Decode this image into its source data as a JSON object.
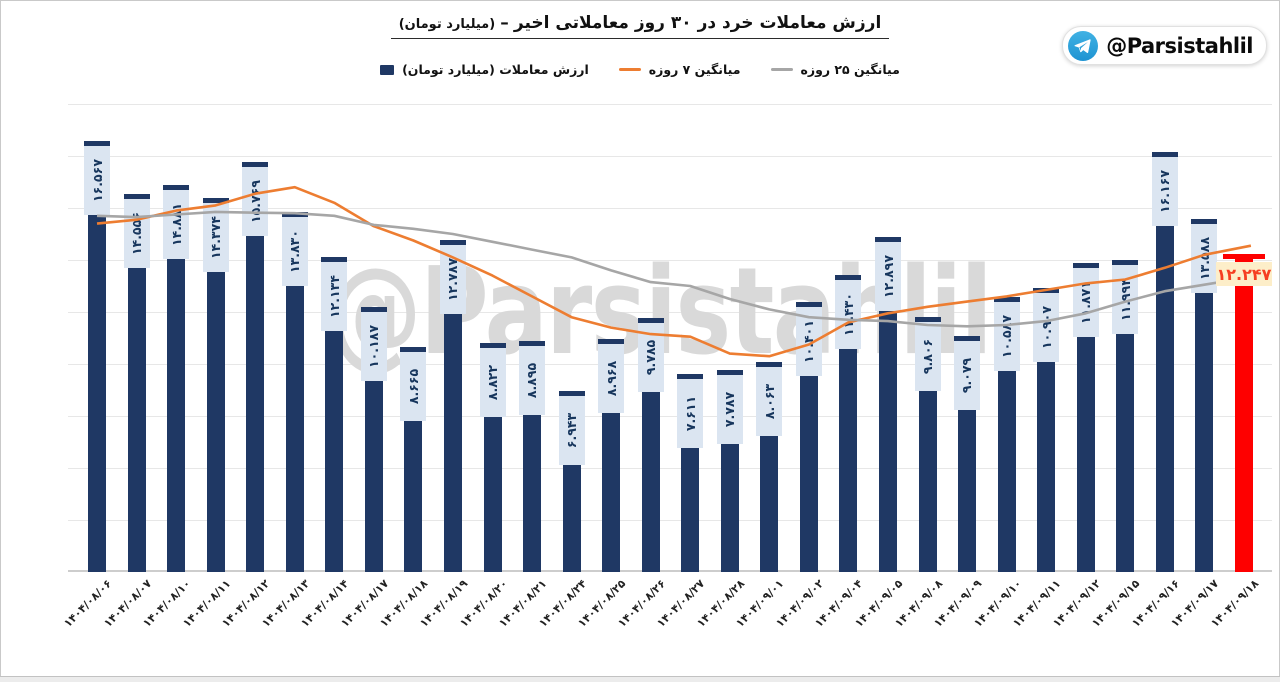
{
  "title": {
    "text": "ارزش معاملات خرد در ۳۰ روز معاملاتی اخیر",
    "separator": "–",
    "unit": "(میلیارد تومان)"
  },
  "badge": {
    "handle": "@Parsistahlil",
    "icon": "telegram-icon",
    "icon_color": "#2f9fda"
  },
  "watermark": "@Parsistahlil",
  "legend": {
    "items": [
      {
        "label": "ارزش معاملات (میلیارد تومان)",
        "marker": "square",
        "color": "#1f3864"
      },
      {
        "label": "میانگین ۷ روزه",
        "marker": "line",
        "color": "#ed7d31"
      },
      {
        "label": "میانگین ۲۵ روزه",
        "marker": "line",
        "color": "#a6a6a6"
      }
    ]
  },
  "chart_data": {
    "type": "bar",
    "title": "ارزش معاملات خرد در ۳۰ روز معاملاتی اخیر – (میلیارد تومان)",
    "xlabel": "",
    "ylabel": "",
    "ylim": [
      0,
      18000
    ],
    "grid_step": 2000,
    "y_tick_labels_visible": false,
    "grid": true,
    "legend_position": "top-center",
    "categories": [
      "۱۴۰۴/۰۸/۰۶",
      "۱۴۰۴/۰۸/۰۷",
      "۱۴۰۴/۰۸/۱۰",
      "۱۴۰۴/۰۸/۱۱",
      "۱۴۰۴/۰۸/۱۲",
      "۱۴۰۴/۰۸/۱۳",
      "۱۴۰۴/۰۸/۱۴",
      "۱۴۰۴/۰۸/۱۷",
      "۱۴۰۴/۰۸/۱۸",
      "۱۴۰۴/۰۸/۱۹",
      "۱۴۰۴/۰۸/۲۰",
      "۱۴۰۴/۰۸/۲۱",
      "۱۴۰۴/۰۸/۲۴",
      "۱۴۰۴/۰۸/۲۵",
      "۱۴۰۴/۰۸/۲۶",
      "۱۴۰۴/۰۸/۲۷",
      "۱۴۰۴/۰۸/۲۸",
      "۱۴۰۴/۰۹/۰۱",
      "۱۴۰۴/۰۹/۰۲",
      "۱۴۰۴/۰۹/۰۴",
      "۱۴۰۴/۰۹/۰۵",
      "۱۴۰۴/۰۹/۰۸",
      "۱۴۰۴/۰۹/۰۹",
      "۱۴۰۴/۰۹/۱۰",
      "۱۴۰۴/۰۹/۱۱",
      "۱۴۰۴/۰۹/۱۲",
      "۱۴۰۴/۰۹/۱۵",
      "۱۴۰۴/۰۹/۱۶",
      "۱۴۰۴/۰۹/۱۷",
      "۱۴۰۴/۰۹/۱۸"
    ],
    "series": [
      {
        "name": "ارزش معاملات (میلیارد تومان)",
        "type": "bar",
        "color": "#1f3864",
        "label_bg": "#dbe5f1",
        "label_color": "#17365d",
        "values": [
          16567,
          14556,
          14881,
          14374,
          15769,
          13830,
          12134,
          10187,
          8665,
          12787,
          8822,
          8895,
          6943,
          8968,
          9785,
          7611,
          7787,
          8063,
          10401,
          11430,
          12897,
          9806,
          9079,
          10587,
          10907,
          11871,
          11994,
          16167,
          13588,
          12247
        ],
        "labels_fa": [
          "۱۶.۵۶۷",
          "۱۴.۵۵۶",
          "۱۴.۸۸۱",
          "۱۴.۳۷۴",
          "۱۵.۷۶۹",
          "۱۳.۸۳۰",
          "۱۲.۱۳۴",
          "۱۰.۱۸۷",
          "۸.۶۶۵",
          "۱۲.۷۸۷",
          "۸.۸۲۲",
          "۸.۸۹۵",
          "۶.۹۴۳",
          "۸.۹۶۸",
          "۹.۷۸۵",
          "۷.۶۱۱",
          "۷.۷۸۷",
          "۸.۰۶۳",
          "۱۰.۴۰۱",
          "۱۱.۴۳۰",
          "۱۲.۸۹۷",
          "۹.۸۰۶",
          "۹.۰۷۹",
          "۱۰.۵۸۷",
          "۱۰.۹۰۷",
          "۱۱.۸۷۱",
          "۱۱.۹۹۴",
          "۱۶.۱۶۷",
          "۱۳.۵۸۸",
          "۱۲.۲۴۷"
        ],
        "highlight_last": {
          "bar_color": "#fe0000",
          "label": "۱۲.۲۴۷",
          "label_color": "#f63e22",
          "label_bg": "#fdeec9"
        }
      },
      {
        "name": "میانگین ۷ روزه",
        "type": "line",
        "color": "#ed7d31",
        "values": [
          13400,
          13550,
          13900,
          14100,
          14550,
          14800,
          14200,
          13300,
          12750,
          12100,
          11400,
          10600,
          9800,
          9400,
          9150,
          9050,
          8400,
          8300,
          8750,
          9600,
          9950,
          10200,
          10400,
          10600,
          10850,
          11100,
          11250,
          11700,
          12200,
          12550
        ]
      },
      {
        "name": "میانگین ۲۵ روزه",
        "type": "line",
        "color": "#a6a6a6",
        "values": [
          13700,
          13650,
          13750,
          13850,
          13820,
          13800,
          13700,
          13350,
          13200,
          13000,
          12700,
          12400,
          12100,
          11600,
          11150,
          11000,
          10500,
          10100,
          9800,
          9700,
          9650,
          9500,
          9450,
          9500,
          9650,
          9950,
          10400,
          10800,
          11050,
          11250
        ]
      }
    ]
  }
}
